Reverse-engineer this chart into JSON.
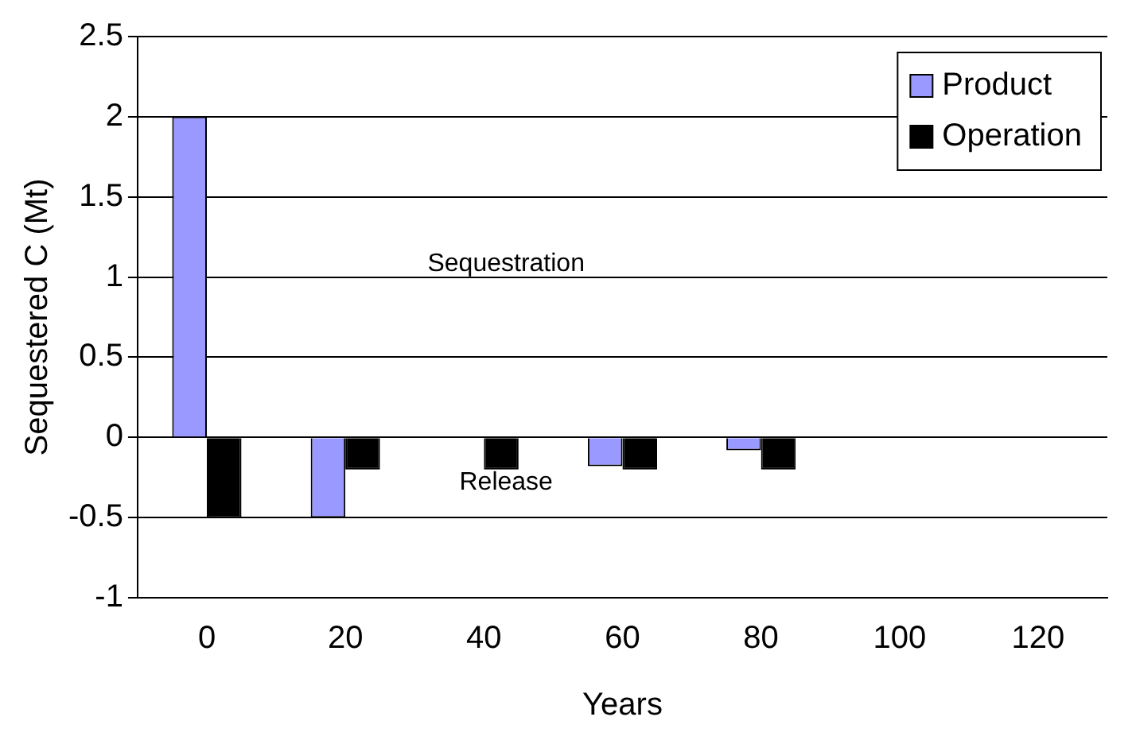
{
  "chart_data": {
    "type": "bar",
    "xlabel": "Years",
    "ylabel": "Sequestered C (Mt)",
    "categories": [
      "0",
      "20",
      "40",
      "60",
      "80",
      "100",
      "120"
    ],
    "series": [
      {
        "name": "Product",
        "color": "#9999ff",
        "values": [
          2,
          -0.5,
          0,
          -0.18,
          -0.08,
          0,
          0
        ]
      },
      {
        "name": "Operation",
        "color": "#000000",
        "values": [
          -0.5,
          -0.2,
          -0.2,
          -0.2,
          -0.2,
          0,
          0
        ]
      }
    ],
    "ylim": [
      -1,
      2.5
    ],
    "yticks": [
      -1,
      -0.5,
      0,
      0.5,
      1,
      1.5,
      2,
      2.5
    ],
    "grid": "y",
    "legend": "top right",
    "annotations": [
      "Sequestration",
      "Release"
    ]
  }
}
